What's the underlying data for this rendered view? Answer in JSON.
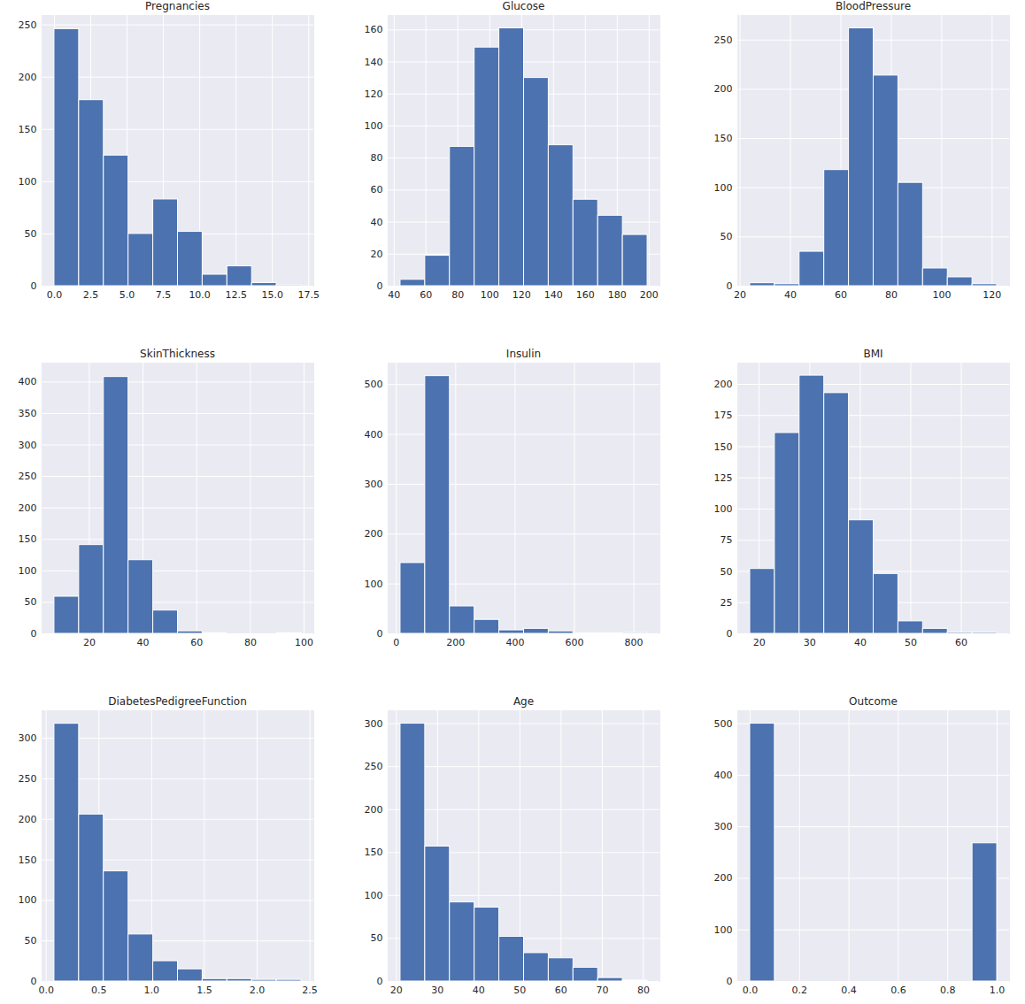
{
  "chart_data": [
    {
      "type": "histogram",
      "title": "Pregnancies",
      "color": "#4c72b0",
      "grid": true,
      "bins": [
        0,
        1.7,
        3.4,
        5.1,
        6.8,
        8.5,
        10.2,
        11.9,
        13.6,
        15.3,
        17
      ],
      "values": [
        246,
        178,
        125,
        50,
        83,
        52,
        11,
        19,
        3,
        1
      ],
      "xlim": [
        -0.85,
        17.85
      ],
      "ylim": [
        0,
        259
      ],
      "xticks": [
        {
          "value": 0,
          "label": "0.0"
        },
        {
          "value": 2.5,
          "label": "2.5"
        },
        {
          "value": 5,
          "label": "5.0"
        },
        {
          "value": 7.5,
          "label": "7.5"
        },
        {
          "value": 10,
          "label": "10.0"
        },
        {
          "value": 12.5,
          "label": "12.5"
        },
        {
          "value": 15,
          "label": "15.0"
        },
        {
          "value": 17.5,
          "label": "17.5"
        }
      ],
      "yticks": [
        0,
        50,
        100,
        150,
        200,
        250
      ]
    },
    {
      "type": "histogram",
      "title": "Glucose",
      "color": "#4c72b0",
      "grid": true,
      "bins": [
        44,
        59.5,
        75,
        90.5,
        106,
        121.5,
        137,
        152.5,
        168,
        183.5,
        199
      ],
      "values": [
        4,
        19,
        87,
        149,
        161,
        130,
        88,
        54,
        44,
        32
      ],
      "xlim": [
        36.25,
        206.75
      ],
      "ylim": [
        0,
        169
      ],
      "xticks": [
        40,
        60,
        80,
        100,
        120,
        140,
        160,
        180,
        200
      ],
      "yticks": [
        0,
        20,
        40,
        60,
        80,
        100,
        120,
        140,
        160
      ]
    },
    {
      "type": "histogram",
      "title": "BloodPressure",
      "color": "#4c72b0",
      "grid": true,
      "bins": [
        24,
        33.8,
        43.6,
        53.4,
        63.2,
        73,
        82.8,
        92.6,
        102.4,
        112.2,
        122
      ],
      "values": [
        3,
        2,
        35,
        118,
        262,
        214,
        105,
        18,
        9,
        2
      ],
      "xlim": [
        19.1,
        126.9
      ],
      "ylim": [
        0,
        275
      ],
      "xticks": [
        20,
        40,
        60,
        80,
        100,
        120
      ],
      "yticks": [
        0,
        50,
        100,
        150,
        200,
        250
      ]
    },
    {
      "type": "histogram",
      "title": "SkinThickness",
      "color": "#4c72b0",
      "grid": true,
      "bins": [
        7,
        16.2,
        25.4,
        34.6,
        43.8,
        53,
        62.2,
        71.4,
        80.6,
        89.8,
        99
      ],
      "values": [
        59,
        141,
        408,
        117,
        37,
        4,
        1,
        0,
        0,
        1
      ],
      "xlim": [
        2.4,
        103.6
      ],
      "ylim": [
        0,
        430
      ],
      "xticks": [
        20,
        40,
        60,
        80,
        100
      ],
      "yticks": [
        0,
        50,
        100,
        150,
        200,
        250,
        300,
        350,
        400
      ]
    },
    {
      "type": "histogram",
      "title": "Insulin",
      "color": "#4c72b0",
      "grid": true,
      "bins": [
        14,
        97.2,
        180.4,
        263.6,
        346.8,
        430,
        513.2,
        596.4,
        679.6,
        762.8,
        846
      ],
      "values": [
        142,
        517,
        55,
        28,
        7,
        10,
        5,
        1,
        1,
        2
      ],
      "xlim": [
        -27.6,
        887.6
      ],
      "ylim": [
        0,
        543
      ],
      "xticks": [
        0,
        200,
        400,
        600,
        800
      ],
      "yticks": [
        0,
        100,
        200,
        300,
        400,
        500
      ]
    },
    {
      "type": "histogram",
      "title": "BMI",
      "color": "#4c72b0",
      "grid": true,
      "bins": [
        18.2,
        23.09,
        27.98,
        32.87,
        37.76,
        42.65,
        47.54,
        52.43,
        57.32,
        62.21,
        67.1
      ],
      "values": [
        52,
        161,
        207,
        193,
        91,
        48,
        10,
        4,
        1,
        1
      ],
      "xlim": [
        15.75,
        69.55
      ],
      "ylim": [
        0,
        217
      ],
      "xticks": [
        20,
        30,
        40,
        50,
        60
      ],
      "yticks": [
        0,
        25,
        50,
        75,
        100,
        125,
        150,
        175,
        200
      ]
    },
    {
      "type": "histogram",
      "title": "DiabetesPedigreeFunction",
      "color": "#4c72b0",
      "grid": true,
      "bins": [
        0.078,
        0.312,
        0.546,
        0.781,
        1.015,
        1.249,
        1.483,
        1.717,
        1.952,
        2.186,
        2.42
      ],
      "values": [
        318,
        206,
        136,
        58,
        25,
        15,
        3,
        3,
        2,
        2
      ],
      "xlim": [
        -0.039,
        2.537
      ],
      "ylim": [
        0,
        334
      ],
      "xticks": [
        {
          "value": 0,
          "label": "0.0"
        },
        {
          "value": 0.5,
          "label": "0.5"
        },
        {
          "value": 1,
          "label": "1.0"
        },
        {
          "value": 1.5,
          "label": "1.5"
        },
        {
          "value": 2,
          "label": "2.0"
        },
        {
          "value": 2.5,
          "label": "2.5"
        }
      ],
      "yticks": [
        0,
        50,
        100,
        150,
        200,
        250,
        300
      ]
    },
    {
      "type": "histogram",
      "title": "Age",
      "color": "#4c72b0",
      "grid": true,
      "bins": [
        21,
        27,
        33,
        39,
        45,
        51,
        57,
        63,
        69,
        75,
        81
      ],
      "values": [
        300,
        157,
        92,
        86,
        52,
        33,
        27,
        16,
        4,
        1
      ],
      "xlim": [
        18,
        84
      ],
      "ylim": [
        0,
        315
      ],
      "xticks": [
        20,
        30,
        40,
        50,
        60,
        70,
        80
      ],
      "yticks": [
        0,
        50,
        100,
        150,
        200,
        250,
        300
      ]
    },
    {
      "type": "histogram",
      "title": "Outcome",
      "color": "#4c72b0",
      "grid": true,
      "bins": [
        0,
        0.1,
        0.2,
        0.3,
        0.4,
        0.5,
        0.6,
        0.7,
        0.8,
        0.9,
        1
      ],
      "values": [
        500,
        0,
        0,
        0,
        0,
        0,
        0,
        0,
        0,
        268
      ],
      "xlim": [
        -0.05,
        1.05
      ],
      "ylim": [
        0,
        525
      ],
      "xticks": [
        {
          "value": 0,
          "label": "0.0"
        },
        {
          "value": 0.2,
          "label": "0.2"
        },
        {
          "value": 0.4,
          "label": "0.4"
        },
        {
          "value": 0.6,
          "label": "0.6"
        },
        {
          "value": 0.8,
          "label": "0.8"
        },
        {
          "value": 1,
          "label": "1.0"
        }
      ],
      "yticks": [
        0,
        100,
        200,
        300,
        400,
        500
      ]
    }
  ]
}
